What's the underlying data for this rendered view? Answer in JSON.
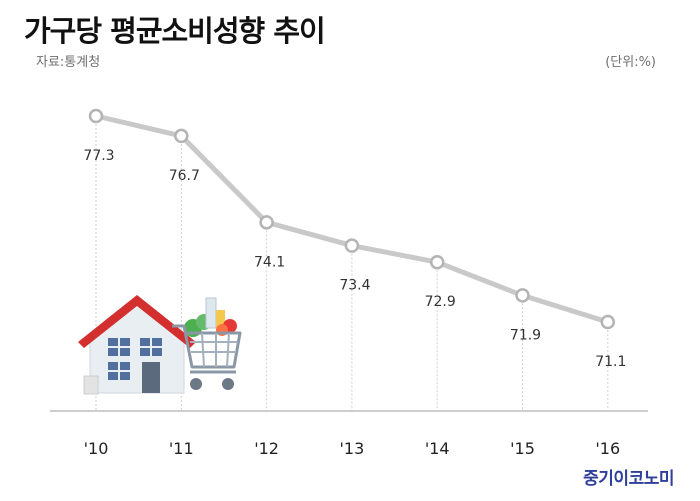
{
  "header": {
    "title": "가구당 평균소비성향 추이",
    "source": "자료:통계청",
    "unit": "(단위:%)"
  },
  "brand": "중기이코노미",
  "colors": {
    "line": "#c9c9c9",
    "marker_fill": "#ffffff",
    "marker_stroke": "#b4b4b4",
    "axis": "#bdbdbd",
    "drop_line": "#cfcfcf",
    "brand": "#2f3f9a"
  },
  "illustration": {
    "icons": [
      "house-icon",
      "shopping-cart-icon"
    ]
  },
  "chart_data": {
    "type": "line",
    "title": "가구당 평균소비성향 추이",
    "xlabel": "",
    "ylabel": "",
    "categories": [
      "'10",
      "'11",
      "'12",
      "'13",
      "'14",
      "'15",
      "'16"
    ],
    "values": [
      77.3,
      76.7,
      74.1,
      73.4,
      72.9,
      71.9,
      71.1
    ],
    "labels": [
      "77.3",
      "76.7",
      "74.1",
      "73.4",
      "72.9",
      "71.9",
      "71.1"
    ],
    "ylim": [
      64.5,
      78.5
    ],
    "grid": false,
    "legend": "none"
  }
}
